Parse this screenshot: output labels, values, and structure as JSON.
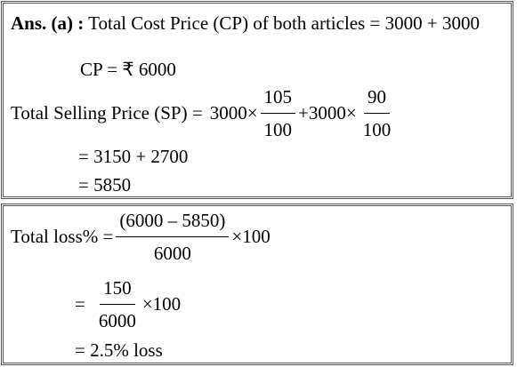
{
  "box1": {
    "label": "Ans. (a) :",
    "line1": "Total Cost Price (CP) of both articles = 3000 + 3000",
    "line2": "CP = ₹ 6000",
    "sp": {
      "lead": "Total Selling Price (SP) =",
      "term1": "3000×",
      "frac1": {
        "num": "105",
        "den": "100"
      },
      "term2": "+3000×",
      "frac2": {
        "num": "90",
        "den": "100"
      }
    },
    "line4": "= 3150 + 2700",
    "line5": "= 5850"
  },
  "box2": {
    "loss": {
      "lead": "Total loss% =",
      "frac": {
        "num": "(6000 – 5850)",
        "den": "6000"
      },
      "tail": "×100"
    },
    "step": {
      "lead": "=",
      "frac": {
        "num": "150",
        "den": "6000"
      },
      "tail": "×100"
    },
    "result": "= 2.5% loss"
  }
}
